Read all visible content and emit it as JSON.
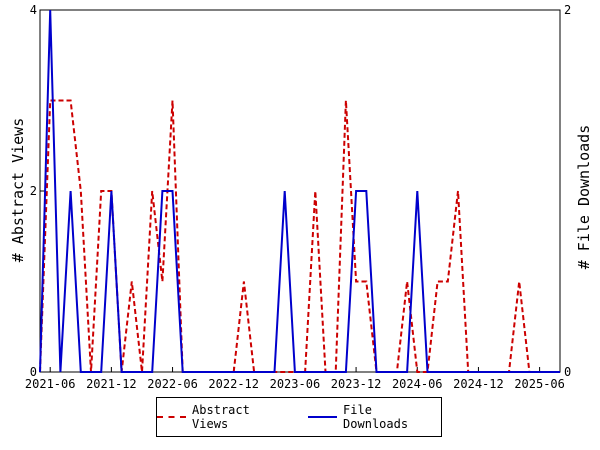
{
  "chart_data": {
    "type": "line",
    "ylabel": "# Abstract Views",
    "y2label": "# File Downloads",
    "ylim": [
      0,
      4
    ],
    "y2lim": [
      0,
      2
    ],
    "y_ticks": [
      "0",
      "2",
      "4"
    ],
    "y2_ticks": [
      "0",
      "2"
    ],
    "x_ticks": [
      "2021-06",
      "2021-12",
      "2022-06",
      "2022-12",
      "2023-06",
      "2023-12",
      "2024-06",
      "2024-12",
      "2025-06"
    ],
    "x": [
      "2021-05",
      "2021-06",
      "2021-07",
      "2021-08",
      "2021-09",
      "2021-10",
      "2021-11",
      "2021-12",
      "2022-01",
      "2022-02",
      "2022-03",
      "2022-04",
      "2022-05",
      "2022-06",
      "2022-07",
      "2022-08",
      "2022-09",
      "2022-10",
      "2022-11",
      "2022-12",
      "2023-01",
      "2023-02",
      "2023-03",
      "2023-04",
      "2023-05",
      "2023-06",
      "2023-07",
      "2023-08",
      "2023-09",
      "2023-10",
      "2023-11",
      "2023-12",
      "2024-01",
      "2024-02",
      "2024-03",
      "2024-04",
      "2024-05",
      "2024-06",
      "2024-07",
      "2024-08",
      "2024-09",
      "2024-10",
      "2024-11",
      "2024-12",
      "2025-01",
      "2025-02",
      "2025-03",
      "2025-04",
      "2025-05",
      "2025-06",
      "2025-07",
      "2025-08"
    ],
    "series": [
      {
        "name": "Abstract Views",
        "axis": "left",
        "color": "#cc0000",
        "style": "dashed",
        "values": [
          0,
          3,
          3,
          3,
          2,
          0,
          2,
          2,
          0,
          1,
          0,
          2,
          1,
          3,
          0,
          0,
          0,
          0,
          0,
          0,
          1,
          0,
          0,
          0,
          0,
          0,
          0,
          2,
          0,
          0,
          3,
          1,
          1,
          0,
          0,
          0,
          1,
          0,
          0,
          1,
          1,
          2,
          0,
          0,
          0,
          0,
          0,
          1,
          0,
          0,
          0,
          0
        ]
      },
      {
        "name": "File Downloads",
        "axis": "right",
        "color": "#0000cc",
        "style": "solid",
        "values": [
          0,
          2,
          0,
          1,
          0,
          0,
          0,
          1,
          0,
          0,
          0,
          0,
          1,
          1,
          0,
          0,
          0,
          0,
          0,
          0,
          0,
          0,
          0,
          0,
          1,
          0,
          0,
          0,
          0,
          0,
          0,
          1,
          1,
          0,
          0,
          0,
          0,
          1,
          0,
          0,
          0,
          0,
          0,
          0,
          0,
          0,
          0,
          0,
          0,
          0,
          0,
          0
        ]
      }
    ],
    "legend_position": "bottom",
    "grid": false
  }
}
